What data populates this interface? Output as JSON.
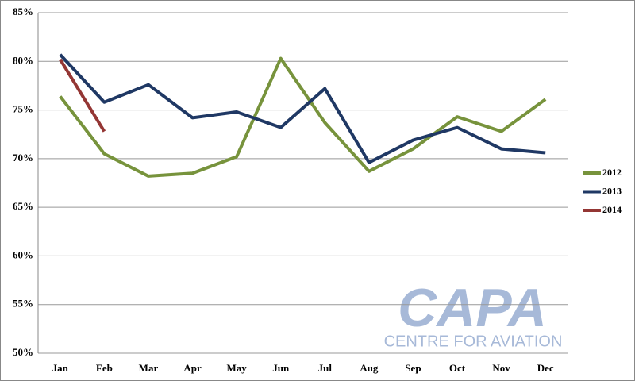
{
  "chart_data": {
    "type": "line",
    "categories": [
      "Jan",
      "Feb",
      "Mar",
      "Apr",
      "May",
      "Jun",
      "Jul",
      "Aug",
      "Sep",
      "Oct",
      "Nov",
      "Dec"
    ],
    "series": [
      {
        "name": "2012",
        "color": "#77933c",
        "values": [
          76.4,
          70.5,
          68.2,
          68.5,
          70.2,
          80.3,
          73.7,
          68.7,
          71.0,
          74.3,
          72.8,
          76.1
        ]
      },
      {
        "name": "2013",
        "color": "#1f3864",
        "values": [
          80.7,
          75.8,
          77.6,
          74.2,
          74.8,
          73.2,
          77.2,
          69.6,
          71.9,
          73.2,
          71.0,
          70.6
        ]
      },
      {
        "name": "2014",
        "color": "#943634",
        "values": [
          80.2,
          72.8,
          null,
          null,
          null,
          null,
          null,
          null,
          null,
          null,
          null,
          null
        ]
      }
    ],
    "ylim": [
      50,
      85
    ],
    "yticks": [
      {
        "value": 50,
        "label": "50%"
      },
      {
        "value": 55,
        "label": "55%"
      },
      {
        "value": 60,
        "label": "60%"
      },
      {
        "value": 65,
        "label": "65%"
      },
      {
        "value": 70,
        "label": "70%"
      },
      {
        "value": 75,
        "label": "75%"
      },
      {
        "value": 80,
        "label": "80%"
      },
      {
        "value": 85,
        "label": "85%"
      }
    ],
    "grid": true,
    "legend": "right",
    "watermark": {
      "title": "CAPA",
      "subtitle": "CENTRE FOR AVIATION"
    }
  }
}
